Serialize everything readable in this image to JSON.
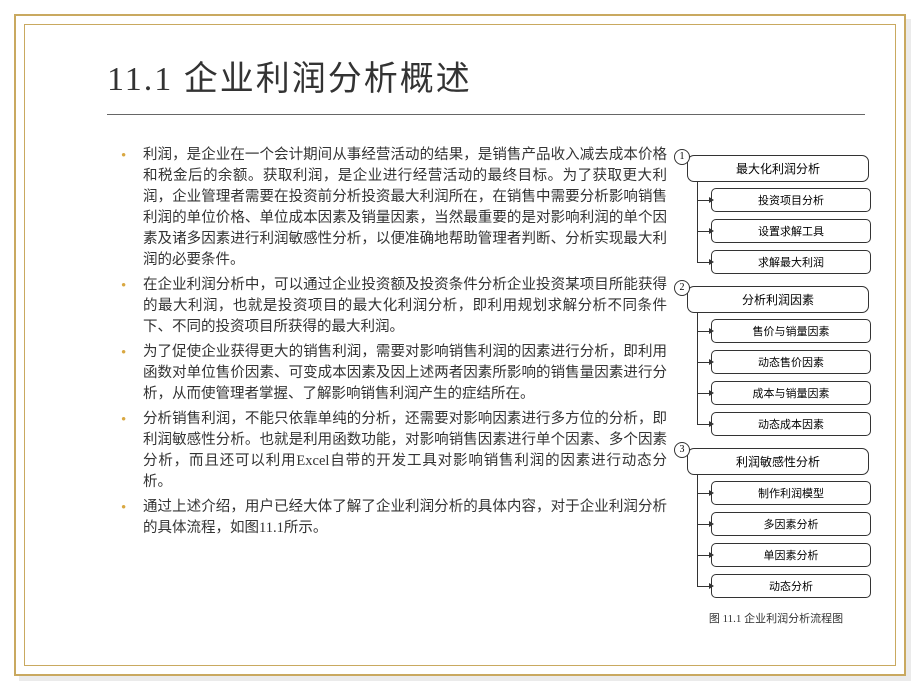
{
  "title": "11.1  企业利润分析概述",
  "bullets": [
    "利润，是企业在一个会计期间从事经营活动的结果，是销售产品收入减去成本价格和税金后的余额。获取利润，是企业进行经营活动的最终目标。为了获取更大利润，企业管理者需要在投资前分析投资最大利润所在，在销售中需要分析影响销售利润的单位价格、单位成本因素及销量因素，当然最重要的是对影响利润的单个因素及诸多因素进行利润敏感性分析，以便准确地帮助管理者判断、分析实现最大利润的必要条件。",
    "在企业利润分析中，可以通过企业投资额及投资条件分析企业投资某项目所能获得的最大利润，也就是投资项目的最大化利润分析，即利用规划求解分析不同条件下、不同的投资项目所获得的最大利润。",
    "为了促使企业获得更大的销售利润，需要对影响销售利润的因素进行分析，即利用函数对单位售价因素、可变成本因素及因上述两者因素所影响的销售量因素进行分析，从而使管理者掌握、了解影响销售利润产生的症结所在。",
    "分析销售利润，不能只依靠单纯的分析，还需要对影响因素进行多方位的分析，即利润敏感性分析。也就是利用函数功能，对影响销售因素进行单个因素、多个因素分析，而且还可以利用Excel自带的开发工具对影响销售利润的因素进行动态分析。",
    "通过上述介绍，用户已经大体了解了企业利润分析的具体内容，对于企业利润分析的具体流程，如图11.1所示。"
  ],
  "diagram": {
    "sections": [
      {
        "num": "1",
        "header": "最大化利润分析",
        "subs": [
          "投资项目分析",
          "设置求解工具",
          "求解最大利润"
        ]
      },
      {
        "num": "2",
        "header": "分析利润因素",
        "subs": [
          "售价与销量因素",
          "动态售价因素",
          "成本与销量因素",
          "动态成本因素"
        ]
      },
      {
        "num": "3",
        "header": "利润敏感性分析",
        "subs": [
          "制作利润模型",
          "多因素分析",
          "单因素分析",
          "动态分析"
        ]
      }
    ],
    "caption": "图 11.1  企业利润分析流程图"
  },
  "colors": {
    "frame_border": "#c9a960",
    "bullet_color": "#d9a842",
    "text_color": "#333333",
    "background": "#ffffff"
  }
}
